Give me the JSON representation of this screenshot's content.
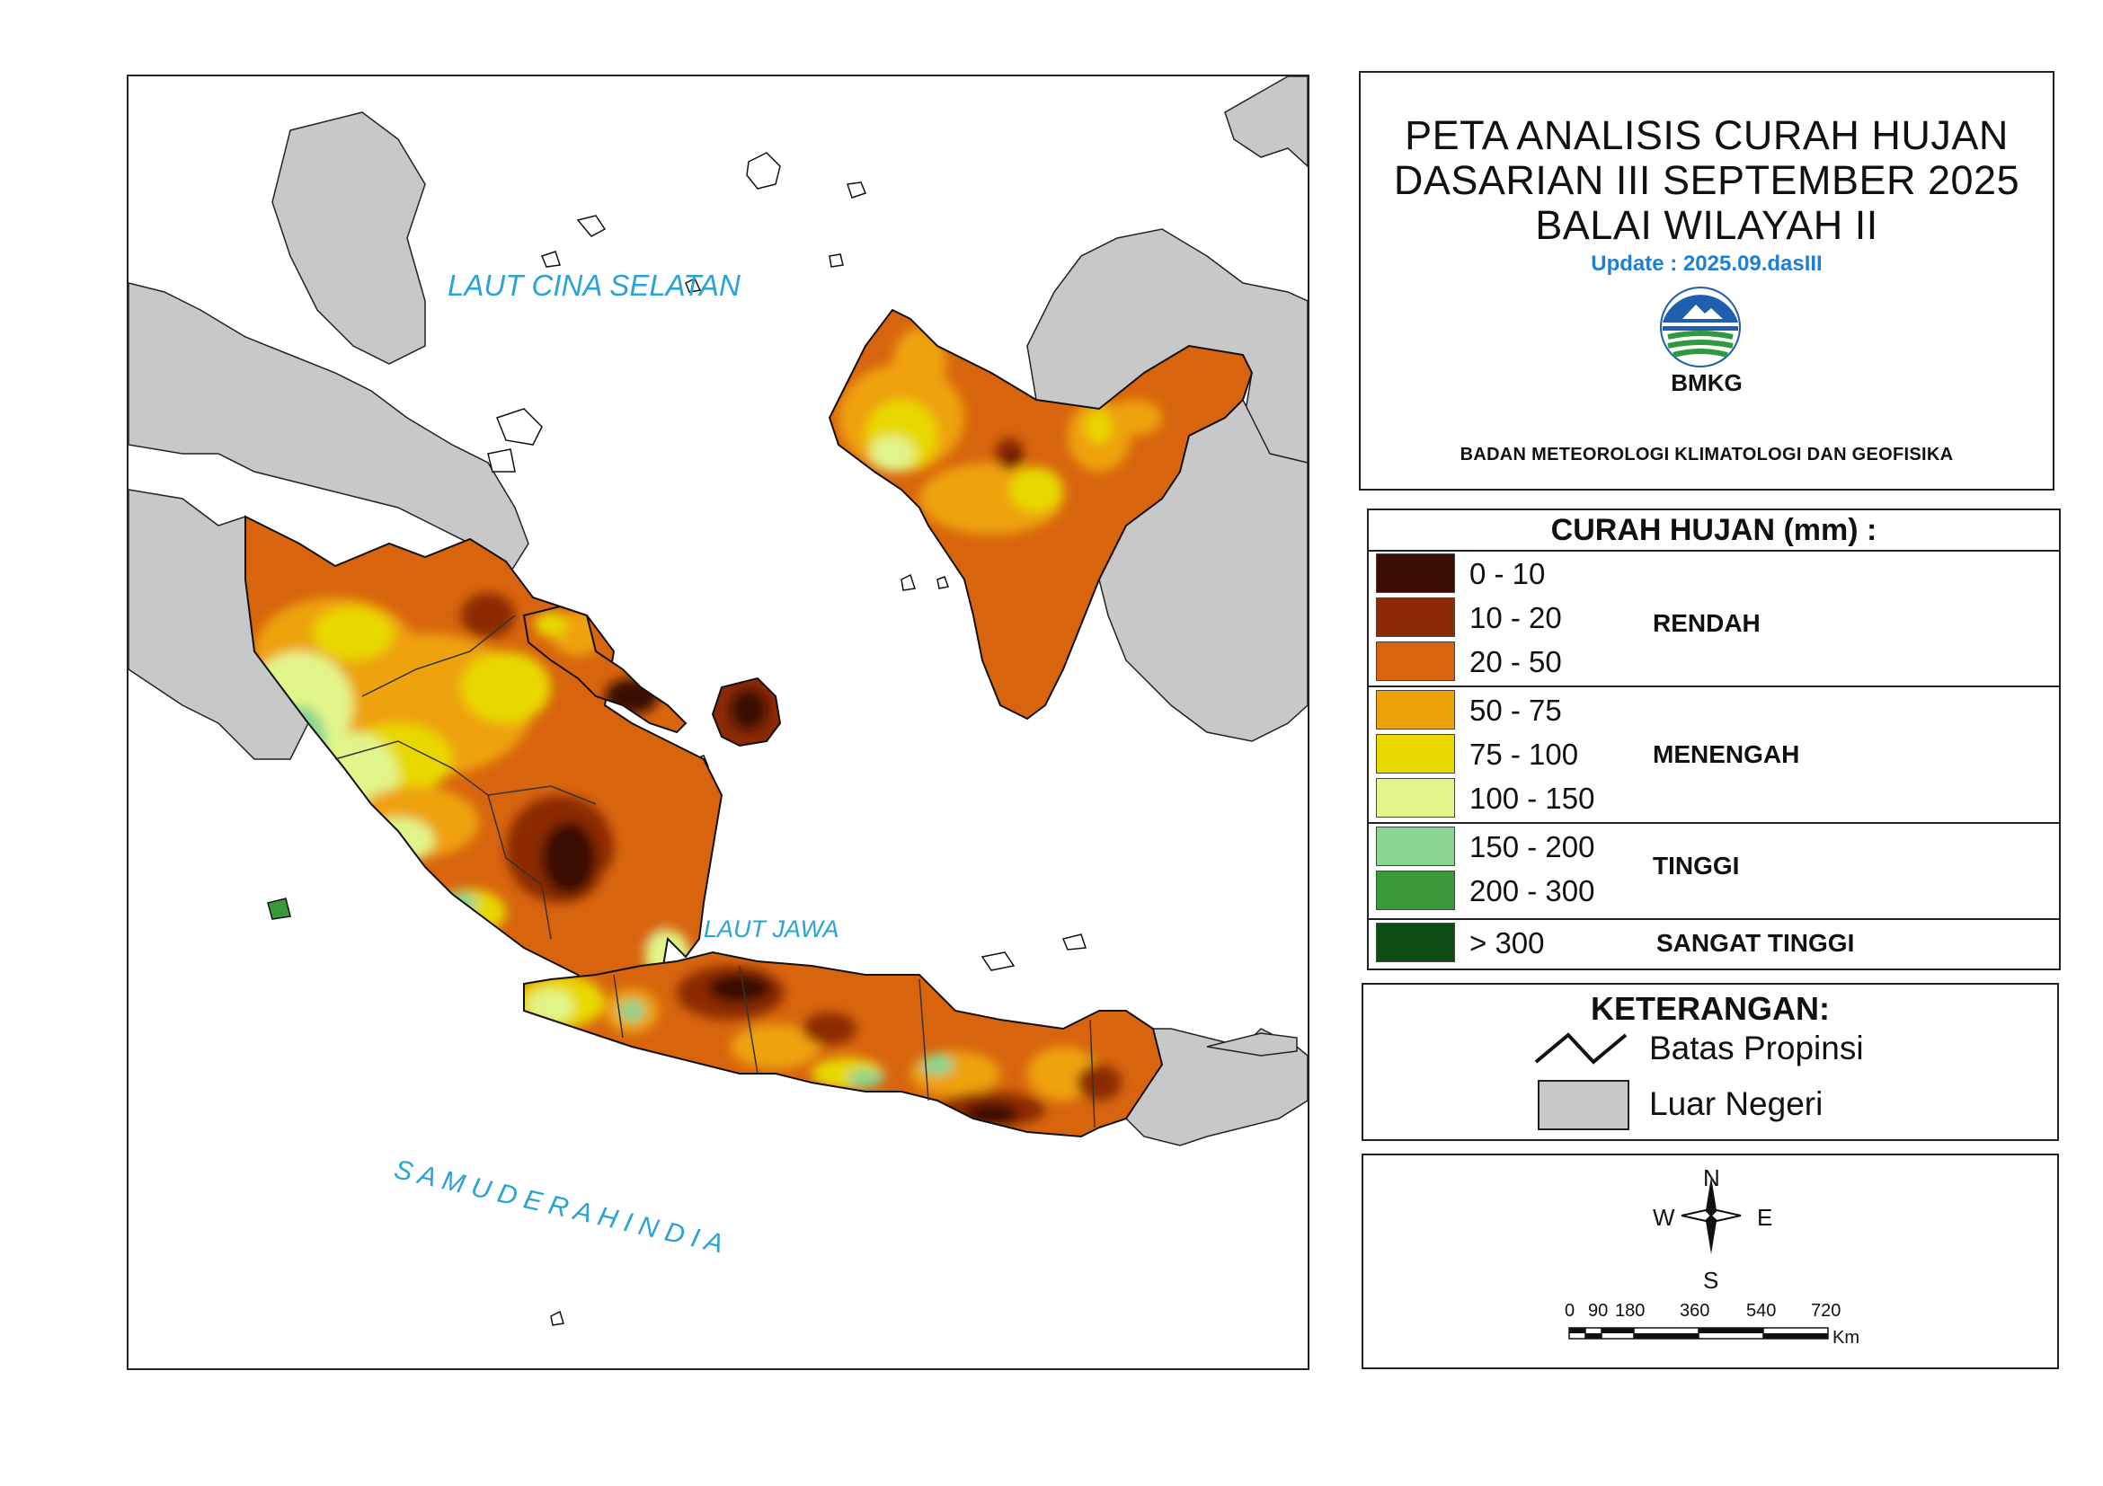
{
  "map": {
    "sea_labels": {
      "south_china_sea": "LAUT CINA SELATAN",
      "java_sea": "LAUT JAWA",
      "indian_ocean": "S A M U D E R A   H I N D I A"
    },
    "colors": {
      "foreign_land": "#c8c8c8",
      "sea": "#ffffff",
      "sea_label": "#2aa3d6",
      "province_border": "#333333"
    }
  },
  "title": {
    "line1": "PETA ANALISIS CURAH HUJAN",
    "line2": "DASARIAN III SEPTEMBER 2025",
    "line3": "BALAI WILAYAH II",
    "update": "Update : 2025.09.dasIII",
    "logo_text": "BMKG",
    "agency": "BADAN METEOROLOGI KLIMATOLOGI DAN GEOFISIKA"
  },
  "legend": {
    "heading": "CURAH HUJAN (mm) :",
    "classes": [
      {
        "range": "0 - 10",
        "color": "#3a0d00"
      },
      {
        "range": "10 - 20",
        "color": "#8b2a05"
      },
      {
        "range": "20 - 50",
        "color": "#d8650e"
      },
      {
        "range": "50 - 75",
        "color": "#eea20a"
      },
      {
        "range": "75 - 100",
        "color": "#e8d800"
      },
      {
        "range": "100 - 150",
        "color": "#e2f58a"
      },
      {
        "range": "150 - 200",
        "color": "#8ad690"
      },
      {
        "range": "200 - 300",
        "color": "#3a9a3a"
      },
      {
        "range": "> 300",
        "color": "#0d4d12"
      }
    ],
    "groups": {
      "low": "RENDAH",
      "medium": "MENENGAH",
      "high": "TINGGI",
      "very_high": "SANGAT TINGGI"
    }
  },
  "keterangan": {
    "title": "KETERANGAN:",
    "province_border": "Batas Propinsi",
    "foreign": "Luar Negeri"
  },
  "compass": {
    "north": "N",
    "south": "S",
    "east": "E",
    "west": "W",
    "scale_ticks": [
      "0",
      "90",
      "180",
      "360",
      "540",
      "720"
    ],
    "scale_unit": "Km"
  }
}
